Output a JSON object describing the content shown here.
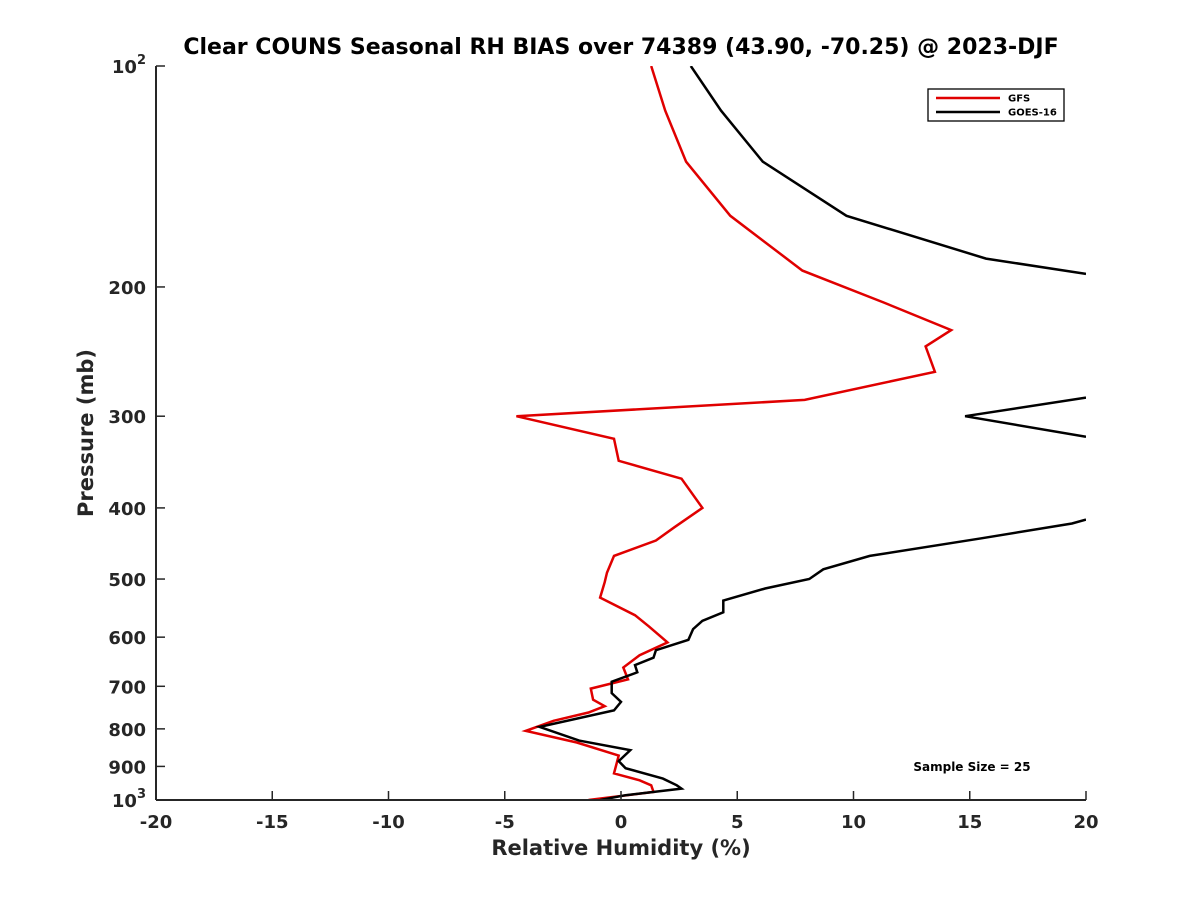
{
  "chart_data": {
    "type": "line",
    "title": "Clear COUNS Seasonal RH BIAS over 74389 (43.90, -70.25) @ 2023-DJF",
    "xlabel": "Relative Humidity (%)",
    "ylabel": "Pressure (mb)",
    "xlim": [
      -20,
      20
    ],
    "ylim": [
      100,
      1000
    ],
    "yscale": "log",
    "yreversed": true,
    "grid": false,
    "legend_location": "top-right",
    "x_ticks": [
      -20,
      -15,
      -10,
      -5,
      0,
      5,
      10,
      15,
      20
    ],
    "x_tick_labels": [
      "-20",
      "-15",
      "-10",
      "-5",
      "0",
      "5",
      "10",
      "15",
      "20"
    ],
    "y_ticks": [
      100,
      200,
      300,
      400,
      500,
      600,
      700,
      800,
      900,
      1000
    ],
    "y_tick_labels": [
      {
        "base": "10",
        "exp": "2"
      },
      {
        "text": "200"
      },
      {
        "text": "300"
      },
      {
        "text": "400"
      },
      {
        "text": "500"
      },
      {
        "text": "600"
      },
      {
        "text": "700"
      },
      {
        "text": "800"
      },
      {
        "text": "900"
      },
      {
        "base": "10",
        "exp": "3"
      }
    ],
    "annotation": "Sample Size = 25",
    "series": [
      {
        "name": "GFS",
        "color": "#e00000",
        "points": [
          [
            1.3,
            100
          ],
          [
            1.9,
            115
          ],
          [
            2.8,
            135
          ],
          [
            4.7,
            160
          ],
          [
            7.8,
            190
          ],
          [
            11.3,
            210
          ],
          [
            14.2,
            229
          ],
          [
            13.1,
            241
          ],
          [
            13.5,
            261
          ],
          [
            7.9,
            285
          ],
          [
            -4.5,
            300
          ],
          [
            -0.3,
            322
          ],
          [
            -0.1,
            345
          ],
          [
            2.6,
            365
          ],
          [
            3.5,
            400
          ],
          [
            2.3,
            425
          ],
          [
            1.5,
            443
          ],
          [
            -0.3,
            465
          ],
          [
            -0.6,
            490
          ],
          [
            -0.7,
            505
          ],
          [
            -0.9,
            530
          ],
          [
            0.6,
            560
          ],
          [
            1.2,
            580
          ],
          [
            2.0,
            610
          ],
          [
            0.8,
            635
          ],
          [
            0.1,
            660
          ],
          [
            0.3,
            685
          ],
          [
            -1.3,
            705
          ],
          [
            -1.2,
            730
          ],
          [
            -0.7,
            745
          ],
          [
            -1.4,
            760
          ],
          [
            -2.9,
            780
          ],
          [
            -4.1,
            805
          ],
          [
            -1.9,
            835
          ],
          [
            -0.1,
            870
          ],
          [
            -0.3,
            920
          ],
          [
            0.8,
            940
          ],
          [
            1.3,
            955
          ],
          [
            1.4,
            975
          ],
          [
            -1.4,
            1000
          ]
        ]
      },
      {
        "name": "GOES-16",
        "color": "#000000",
        "segments": [
          [
            [
              3.0,
              100
            ],
            [
              4.3,
              115
            ],
            [
              6.1,
              135
            ],
            [
              9.7,
              160
            ],
            [
              15.7,
              183
            ],
            [
              20.0,
              192
            ]
          ],
          [
            [
              20.0,
              283
            ],
            [
              14.8,
              300
            ],
            [
              20.0,
              320
            ]
          ],
          [
            [
              20.0,
              415
            ],
            [
              19.4,
              420
            ],
            [
              15.5,
              440
            ],
            [
              10.7,
              465
            ],
            [
              8.7,
              485
            ],
            [
              8.1,
              500
            ],
            [
              6.2,
              515
            ],
            [
              4.4,
              535
            ],
            [
              4.4,
              555
            ],
            [
              3.5,
              570
            ],
            [
              3.1,
              585
            ],
            [
              2.9,
              605
            ],
            [
              1.5,
              625
            ],
            [
              1.4,
              640
            ],
            [
              0.6,
              655
            ],
            [
              0.7,
              670
            ],
            [
              -0.4,
              690
            ],
            [
              -0.4,
              715
            ],
            [
              0.0,
              735
            ],
            [
              -0.3,
              755
            ],
            [
              -3.5,
              795
            ],
            [
              -1.8,
              830
            ],
            [
              0.4,
              855
            ],
            [
              -0.1,
              885
            ],
            [
              0.2,
              905
            ],
            [
              1.8,
              935
            ],
            [
              2.4,
              955
            ],
            [
              2.6,
              965
            ],
            [
              0.2,
              985
            ],
            [
              -0.9,
              1000
            ]
          ]
        ]
      }
    ]
  }
}
